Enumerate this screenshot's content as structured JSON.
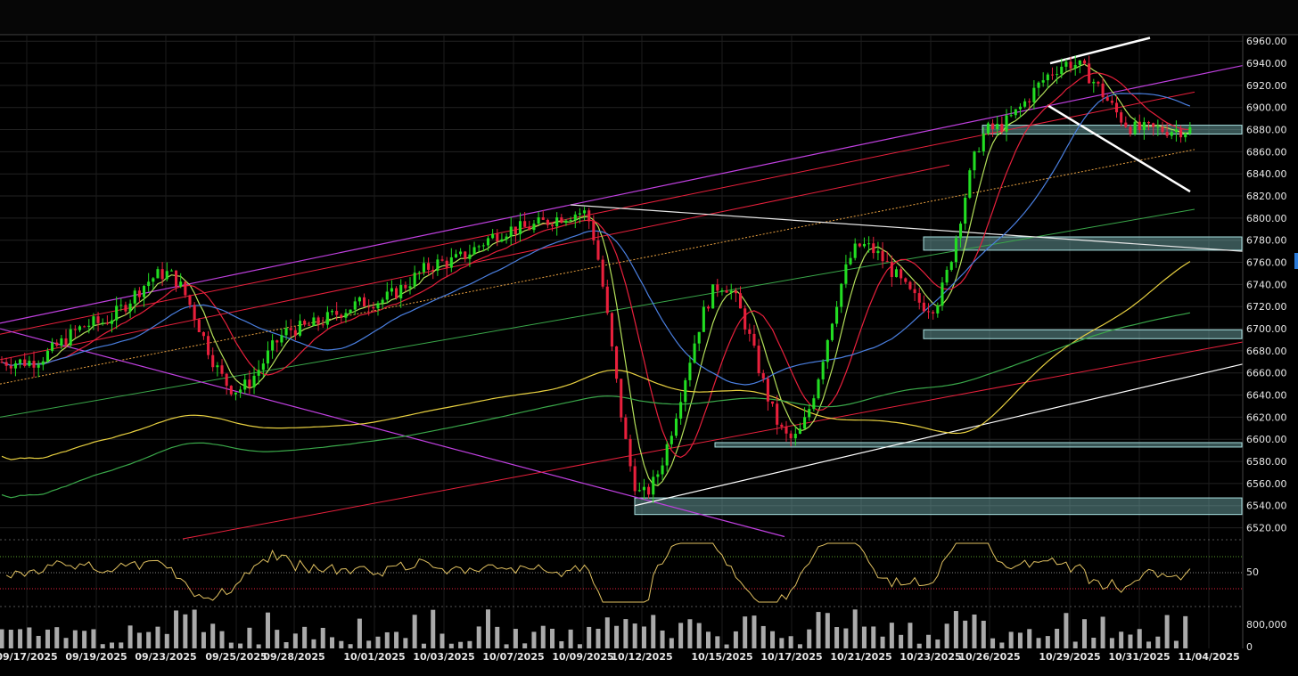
{
  "chart_data": [
    {
      "type": "candlestick",
      "title": "",
      "y_axis_ticks": [
        "6960.00",
        "6940.00",
        "6920.00",
        "6900.00",
        "6880.00",
        "6860.00",
        "6840.00",
        "6820.00",
        "6800.00",
        "6780.00",
        "6760.00",
        "6740.00",
        "6720.00",
        "6700.00",
        "6680.00",
        "6660.00",
        "6640.00",
        "6620.00",
        "6600.00",
        "6580.00",
        "6560.00",
        "6540.00",
        "6520.00"
      ],
      "ylim": [
        6510,
        6965
      ],
      "x_axis_ticks": [
        "09/17/2025",
        "09/19/2025",
        "09/23/2025",
        "09/25/2025",
        "09/28/2025",
        "10/01/2025",
        "10/03/2025",
        "10/07/2025",
        "10/09/2025",
        "10/12/2025",
        "10/15/2025",
        "10/17/2025",
        "10/21/2025",
        "10/23/2025",
        "10/26/2025",
        "10/29/2025",
        "10/31/2025",
        "11/04/2025"
      ],
      "grid": true,
      "up_color": "#22dd22",
      "down_color": "#e8203c",
      "anchors": [
        {
          "date": "09/17/2025",
          "price": 6670
        },
        {
          "date": "09/19/2025",
          "price": 6705
        },
        {
          "date": "09/23/2025",
          "price": 6750
        },
        {
          "date": "09/25/2025",
          "price": 6645
        },
        {
          "date": "09/28/2025",
          "price": 6700
        },
        {
          "date": "10/01/2025",
          "price": 6725
        },
        {
          "date": "10/03/2025",
          "price": 6760
        },
        {
          "date": "10/07/2025",
          "price": 6790
        },
        {
          "date": "10/09/2025",
          "price": 6805
        },
        {
          "date": "10/12/2025",
          "price": 6550
        },
        {
          "date": "10/15/2025",
          "price": 6740
        },
        {
          "date": "10/17/2025",
          "price": 6600
        },
        {
          "date": "10/21/2025",
          "price": 6775
        },
        {
          "date": "10/23/2025",
          "price": 6720
        },
        {
          "date": "10/26/2025",
          "price": 6880
        },
        {
          "date": "10/29/2025",
          "price": 6940
        },
        {
          "date": "10/31/2025",
          "price": 6880
        },
        {
          "date": "11/04/2025",
          "price": 6880
        }
      ],
      "zones": [
        {
          "from_date": "10/26/2025",
          "to_date": "11/04/2025",
          "low": 6876,
          "high": 6884,
          "color": "#7ab8b8"
        },
        {
          "from_date": "10/23/2025",
          "to_date": "11/04/2025",
          "low": 6771,
          "high": 6783,
          "color": "#7ab8b8"
        },
        {
          "from_date": "10/23/2025",
          "to_date": "11/04/2025",
          "low": 6691,
          "high": 6699,
          "color": "#7ab8b8"
        },
        {
          "from_date": "10/15/2025",
          "to_date": "11/04/2025",
          "low": 6593,
          "high": 6597,
          "color": "#7ab8b8"
        },
        {
          "from_date": "10/12/2025",
          "to_date": "11/04/2025",
          "low": 6532,
          "high": 6547,
          "color": "#7ab8b8"
        }
      ],
      "moving_averages": [
        {
          "color": "#b4e05a"
        },
        {
          "color": "#e8203c"
        },
        {
          "color": "#4a7fe0"
        },
        {
          "color": "#e8d040"
        },
        {
          "color": "#3aa84a"
        }
      ]
    },
    {
      "type": "line",
      "y_axis_ticks": [
        "50"
      ],
      "reference_lines": [
        {
          "color": "#5aa02a"
        },
        {
          "color": "#888888"
        },
        {
          "color": "#e8203c"
        }
      ],
      "color": "#e0c060"
    },
    {
      "type": "bar",
      "y_axis_ticks": [
        "800,000",
        "0"
      ],
      "color": "#aaaaaa"
    }
  ]
}
